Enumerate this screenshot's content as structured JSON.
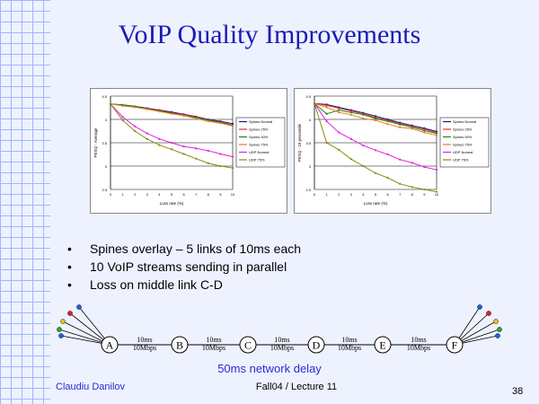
{
  "slide": {
    "title": "VoIP Quality Improvements",
    "bullets": [
      "Spines overlay – 5 links of 10ms each",
      "10 VoIP streams sending in parallel",
      "Loss on middle link C-D"
    ],
    "topology": {
      "nodes": [
        "A",
        "B",
        "C",
        "D",
        "E",
        "F"
      ],
      "links": [
        {
          "delay": "10ms",
          "bandwidth": "10Mbps"
        },
        {
          "delay": "10ms",
          "bandwidth": "10Mbps"
        },
        {
          "delay": "10ms",
          "bandwidth": "10Mbps"
        },
        {
          "delay": "10ms",
          "bandwidth": "10Mbps"
        },
        {
          "delay": "10ms",
          "bandwidth": "10Mbps"
        }
      ]
    },
    "delay_caption": "50ms network delay",
    "author": "Claudiu Danilov",
    "lecture": "Fall04 / Lecture 11",
    "page_number": "38"
  },
  "colors": {
    "title": "#1b1bb5",
    "caption": "#2a2ad0",
    "series": [
      "#1a1a80",
      "#e03020",
      "#208020",
      "#e08020",
      "#e020e0",
      "#8a8a10"
    ]
  },
  "chart_data": [
    {
      "type": "line",
      "title": "",
      "xlabel": "Loss rate (%)",
      "ylabel": "PESQ - Average",
      "xlim": [
        0,
        10
      ],
      "ylim": [
        2.5,
        4.5
      ],
      "xticks": [
        "0",
        "1",
        "2",
        "3",
        "4",
        "5",
        "6",
        "7",
        "8",
        "9",
        "10"
      ],
      "yticks": [
        "2.5",
        "3",
        "3.5",
        "4",
        "4.5"
      ],
      "grid": true,
      "legend": "right",
      "x": [
        0,
        1,
        2,
        3,
        4,
        5,
        6,
        7,
        8,
        9,
        10
      ],
      "series": [
        {
          "name": "Spines Normal",
          "values": [
            4.33,
            4.31,
            4.28,
            4.24,
            4.2,
            4.16,
            4.11,
            4.06,
            4.0,
            3.96,
            3.91
          ]
        },
        {
          "name": "Spines 25%",
          "values": [
            4.33,
            4.3,
            4.27,
            4.23,
            4.19,
            4.14,
            4.1,
            4.05,
            3.99,
            3.94,
            3.88
          ]
        },
        {
          "name": "Spines 50%",
          "values": [
            4.33,
            4.31,
            4.28,
            4.22,
            4.18,
            4.13,
            4.08,
            4.04,
            3.98,
            3.93,
            3.87
          ]
        },
        {
          "name": "Spines 75%",
          "values": [
            4.33,
            4.29,
            4.26,
            4.22,
            4.17,
            4.12,
            4.08,
            4.02,
            3.96,
            3.92,
            3.86
          ]
        },
        {
          "name": "UDP Normal",
          "values": [
            4.33,
            4.05,
            3.85,
            3.7,
            3.58,
            3.5,
            3.42,
            3.38,
            3.33,
            3.26,
            3.2
          ]
        },
        {
          "name": "UDP 75%",
          "values": [
            4.33,
            3.98,
            3.75,
            3.58,
            3.45,
            3.36,
            3.26,
            3.16,
            3.06,
            3.0,
            2.96
          ]
        }
      ]
    },
    {
      "type": "line",
      "title": "",
      "xlabel": "Loss rate (%)",
      "ylabel": "PESQ - 10 percentile",
      "xlim": [
        0,
        10
      ],
      "ylim": [
        2.5,
        4.5
      ],
      "xticks": [
        "0",
        "1",
        "2",
        "3",
        "4",
        "5",
        "6",
        "7",
        "8",
        "9",
        "10"
      ],
      "yticks": [
        "2.5",
        "3",
        "3.5",
        "4",
        "4.5"
      ],
      "grid": true,
      "legend": "right",
      "x": [
        0,
        1,
        2,
        3,
        4,
        5,
        6,
        7,
        8,
        9,
        10
      ],
      "series": [
        {
          "name": "Spines Normal",
          "values": [
            4.34,
            4.32,
            4.26,
            4.2,
            4.14,
            4.07,
            4.0,
            3.93,
            3.87,
            3.81,
            3.74
          ]
        },
        {
          "name": "Spines 25%",
          "values": [
            4.34,
            4.3,
            4.24,
            4.18,
            4.12,
            4.04,
            3.98,
            3.91,
            3.85,
            3.79,
            3.72
          ]
        },
        {
          "name": "Spines 50%",
          "values": [
            4.34,
            4.12,
            4.2,
            4.15,
            4.1,
            4.02,
            3.96,
            3.89,
            3.83,
            3.76,
            3.7
          ]
        },
        {
          "name": "Spines 75%",
          "values": [
            4.34,
            4.26,
            4.15,
            4.1,
            4.02,
            3.98,
            3.9,
            3.83,
            3.8,
            3.72,
            3.66
          ]
        },
        {
          "name": "UDP Normal",
          "values": [
            4.34,
            3.96,
            3.72,
            3.58,
            3.44,
            3.34,
            3.25,
            3.14,
            3.07,
            2.98,
            2.92
          ]
        },
        {
          "name": "UDP 75%",
          "values": [
            4.34,
            3.5,
            3.35,
            3.15,
            3.0,
            2.85,
            2.75,
            2.62,
            2.55,
            2.5,
            2.45
          ]
        }
      ]
    }
  ]
}
